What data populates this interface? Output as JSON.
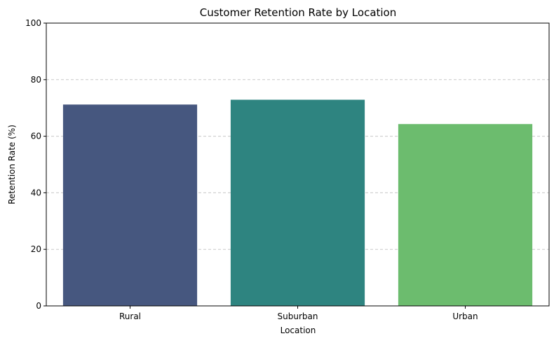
{
  "chart_data": {
    "type": "bar",
    "title": "Customer Retention Rate by Location",
    "xlabel": "Location",
    "ylabel": "Retention Rate (%)",
    "categories": [
      "Rural",
      "Suburban",
      "Urban"
    ],
    "values": [
      71.2,
      72.9,
      64.3
    ],
    "colors": [
      "#46577f",
      "#2e8480",
      "#6cbc6e"
    ],
    "ylim": [
      0,
      100
    ],
    "yticks": [
      0,
      20,
      40,
      60,
      80,
      100
    ],
    "grid": "y-dashed",
    "grid_color": "#c8c8c8"
  }
}
